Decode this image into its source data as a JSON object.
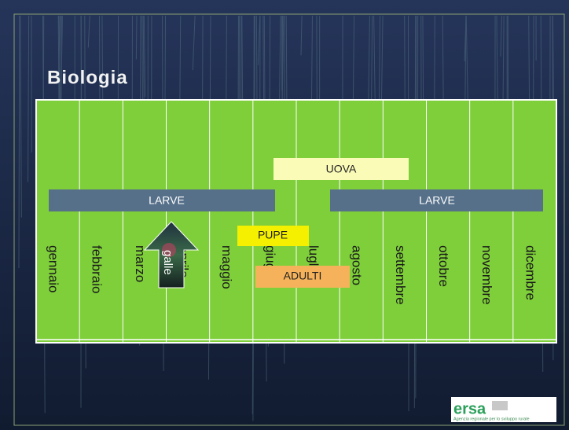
{
  "title": "Biologia",
  "months": [
    "gennaio",
    "febbraio",
    "marzo",
    "aprile",
    "maggio",
    "giugno",
    "luglio",
    "agosto",
    "settembre",
    "ottobre",
    "novembre",
    "dicembre"
  ],
  "bars": {
    "uova": "UOVA",
    "larve_1": "LARVE",
    "larve_2": "LARVE",
    "pupe": "PUPE",
    "adulti": "ADULTI"
  },
  "arrow_label": "galle",
  "logo": {
    "name": "ersa",
    "tagline": "Agenzia regionale per lo sviluppo rurale"
  }
}
